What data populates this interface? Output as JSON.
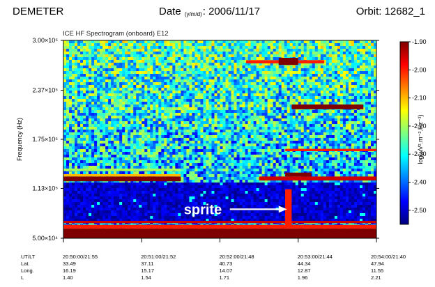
{
  "header": {
    "mission": "DEMETER",
    "date_label": "Date",
    "date_format": "(y/m/d)",
    "date_value": ": 2006/11/17",
    "orbit": "Orbit: 12682_1"
  },
  "chart_data": {
    "type": "heatmap",
    "title": "ICE HF Spectrogram (onboard) E12",
    "ylabel": "Frequency (Hz)",
    "ylim": [
      50000,
      300000
    ],
    "ytick_values": [
      50000,
      113000,
      175000,
      237000,
      300000
    ],
    "ytick_labels": [
      "5.00×10⁴",
      "1.13×10⁵",
      "1.75×10⁵",
      "2.37×10⁵",
      "3.00×10⁵"
    ],
    "xlim": [
      "20:50:00",
      "20:54:00"
    ],
    "colorbar": {
      "label": "log(µV².m⁻².Hz⁻¹)",
      "range": [
        -2.55,
        -1.9
      ],
      "tick_labels": [
        "-1.90",
        "-2.00",
        "-2.10",
        "-2.20",
        "-2.30",
        "-2.40",
        "-2.50"
      ],
      "tick_values": [
        -1.9,
        -2.0,
        -2.1,
        -2.2,
        -2.3,
        -2.4,
        -2.5
      ],
      "colormap": [
        "#00007f",
        "#0000ff",
        "#007fff",
        "#00ffff",
        "#7fff7f",
        "#ffff00",
        "#ff7f00",
        "#ff0000",
        "#7f0000"
      ]
    },
    "annotations": [
      {
        "text": "sprite",
        "time": "20:53:00",
        "freq_hz": 84000,
        "arrow": true
      }
    ],
    "bands": [
      {
        "f_min": 50000,
        "f_max": 62000,
        "t_start": "20:50:00",
        "t_end": "20:54:00",
        "level": -1.9
      },
      {
        "f_min": 62000,
        "f_max": 67000,
        "t_start": "20:50:00",
        "t_end": "20:54:00",
        "level": -2.0
      },
      {
        "f_min": 69000,
        "f_max": 72000,
        "t_start": "20:50:00",
        "t_end": "20:54:00",
        "level": -1.95
      },
      {
        "f_min": 122000,
        "f_max": 128000,
        "t_start": "20:50:00",
        "t_end": "20:51:30",
        "level": -1.9
      },
      {
        "f_min": 128000,
        "f_max": 131000,
        "t_start": "20:50:00",
        "t_end": "20:51:30",
        "level": -2.1
      },
      {
        "f_min": 135000,
        "f_max": 138000,
        "t_start": "20:50:00",
        "t_end": "20:51:30",
        "level": -2.2
      },
      {
        "f_min": 123000,
        "f_max": 128000,
        "t_start": "20:52:30",
        "t_end": "20:54:00",
        "level": -1.95
      },
      {
        "f_min": 128000,
        "f_max": 133000,
        "t_start": "20:52:50",
        "t_end": "20:53:10",
        "level": -1.9
      },
      {
        "f_min": 160000,
        "f_max": 163000,
        "t_start": "20:52:50",
        "t_end": "20:54:00",
        "level": -2.0
      },
      {
        "f_min": 213000,
        "f_max": 219000,
        "t_start": "20:52:55",
        "t_end": "20:53:50",
        "level": -1.9
      },
      {
        "f_min": 271000,
        "f_max": 275000,
        "t_start": "20:52:20",
        "t_end": "20:53:20",
        "level": -2.0
      },
      {
        "f_min": 269000,
        "f_max": 278000,
        "t_start": "20:52:45",
        "t_end": "20:53:00",
        "level": -1.9
      },
      {
        "f_min": 65000,
        "f_max": 112000,
        "t_start": "20:52:50",
        "t_end": "20:52:55",
        "level": -2.0
      }
    ],
    "quiet_region": {
      "f_min": 72000,
      "f_max": 122000,
      "t_start": "20:50:00",
      "t_end": "20:54:00",
      "level": -2.5
    },
    "ephemeris": {
      "row_labels": [
        "UT/LT",
        "Lat.",
        "Long.",
        "L"
      ],
      "columns": [
        {
          "ut_lt": "20:50:00/21:55",
          "lat": "33.49",
          "long": "16.19",
          "l": "1.40"
        },
        {
          "ut_lt": "20:51:00/21:52",
          "lat": "37.11",
          "long": "15.17",
          "l": "1.54"
        },
        {
          "ut_lt": "20:52:00/21:48",
          "lat": "40.73",
          "long": "14.07",
          "l": "1.71"
        },
        {
          "ut_lt": "20:53:00/21:44",
          "lat": "44.34",
          "long": "12.87",
          "l": "1.96"
        },
        {
          "ut_lt": "20:54:00/21:40",
          "lat": "47.94",
          "long": "11.55",
          "l": "2.21"
        }
      ]
    }
  }
}
